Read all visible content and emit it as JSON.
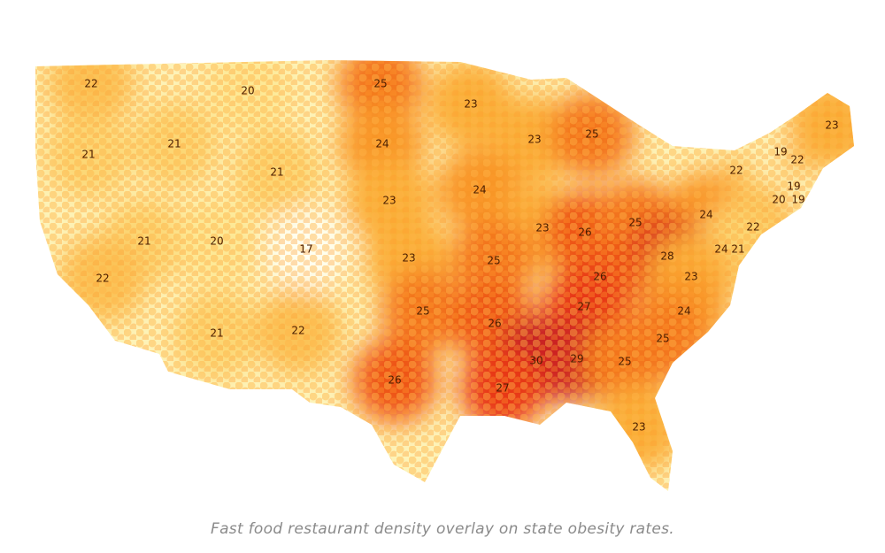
{
  "caption": "Fast food restaurant density overlay on state obesity rates.",
  "state_rates": [
    22,
    20,
    25,
    23,
    23,
    21,
    21,
    21,
    24,
    23,
    25,
    19,
    22,
    22,
    19,
    20,
    19,
    24,
    23,
    24,
    22,
    23,
    26,
    25,
    21,
    20,
    17,
    23,
    25,
    22,
    24,
    21,
    28,
    26,
    23,
    27,
    24,
    25,
    26,
    25,
    21,
    22,
    30,
    29,
    25,
    26,
    27,
    23
  ]
}
